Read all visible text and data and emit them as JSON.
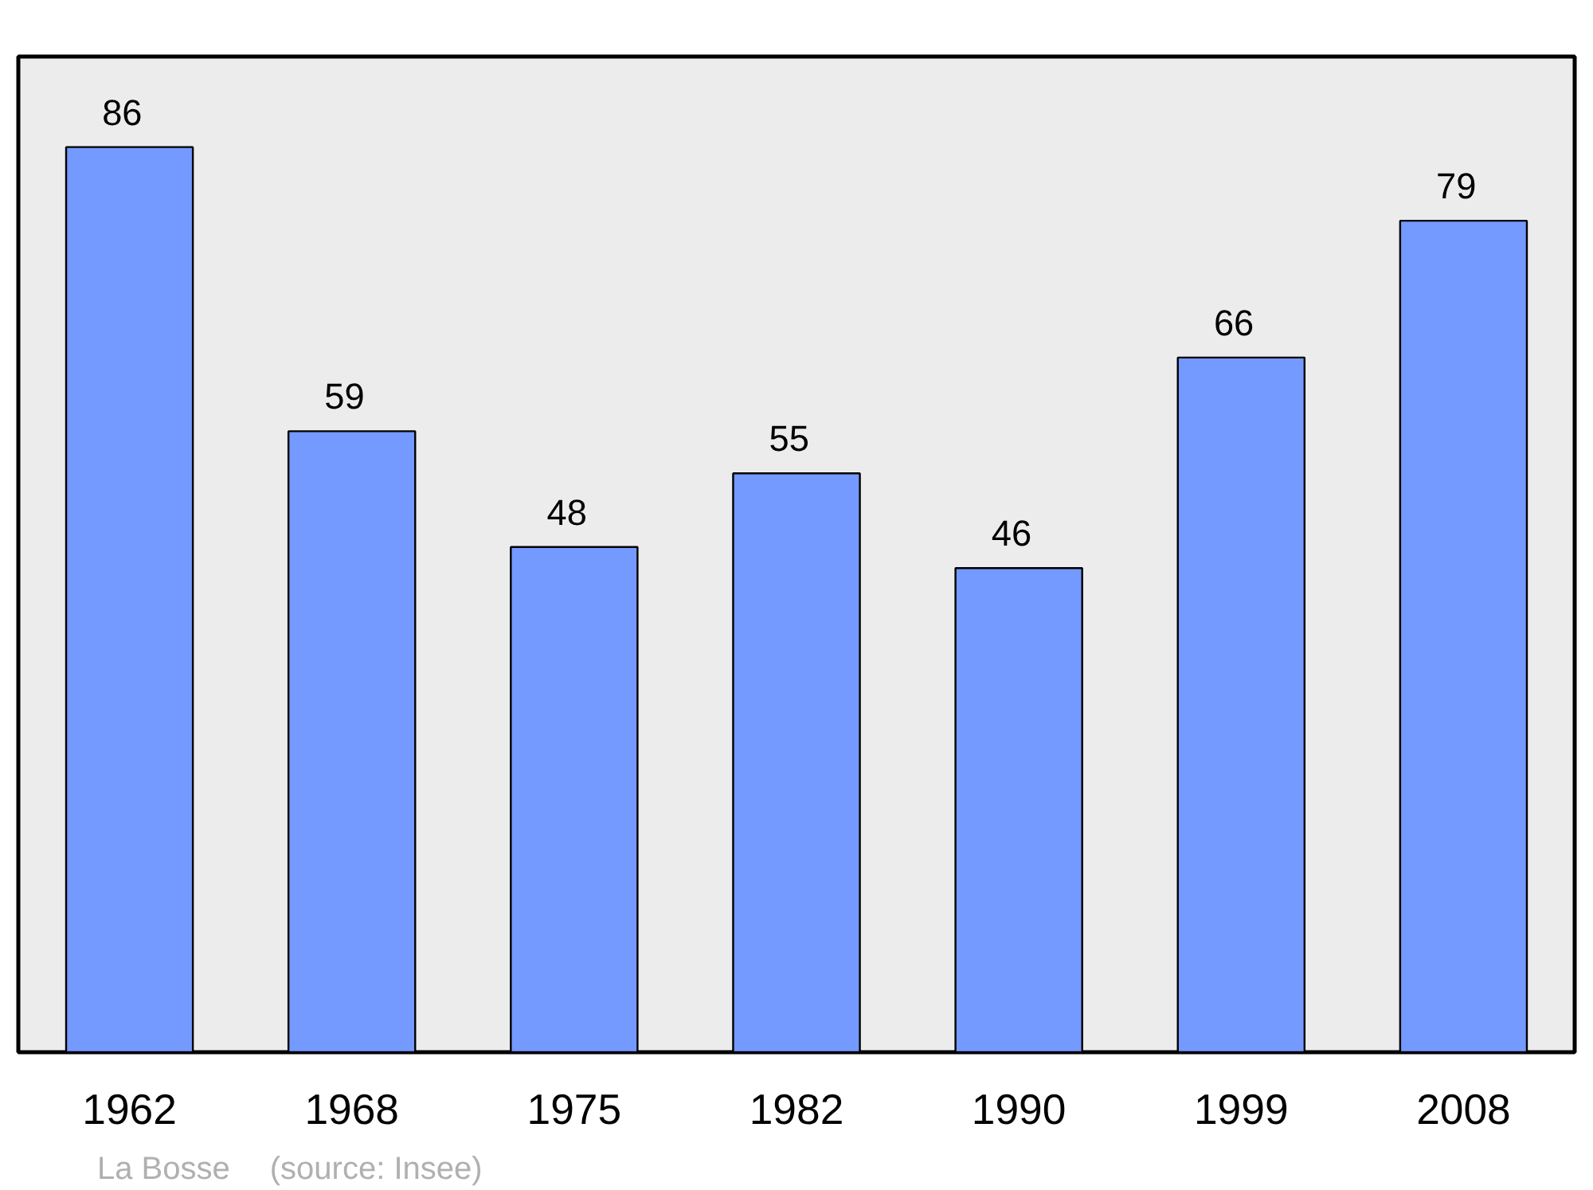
{
  "chart_data": {
    "type": "bar",
    "categories": [
      "1962",
      "1968",
      "1975",
      "1982",
      "1990",
      "1999",
      "2008"
    ],
    "values": [
      86,
      59,
      48,
      55,
      46,
      66,
      79
    ],
    "color": "#7499ff",
    "data_labels": true,
    "grid": false,
    "tick_labels": "x",
    "annotations": [
      "La Bosse",
      "(source: Insee)"
    ]
  }
}
